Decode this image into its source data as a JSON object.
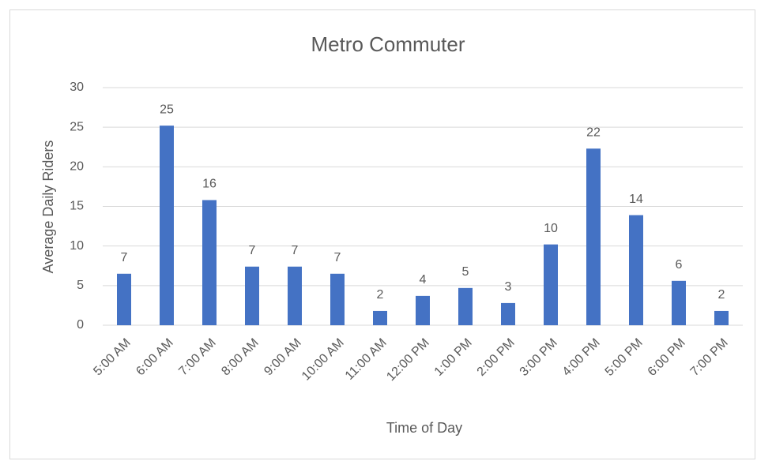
{
  "chart_data": {
    "type": "bar",
    "title": "Metro Commuter",
    "x_label": "Time of Day",
    "y_label": "Average Daily Riders",
    "categories": [
      "5:00 AM",
      "6:00 AM",
      "7:00 AM",
      "8:00 AM",
      "9:00 AM",
      "10:00 AM",
      "11:00 AM",
      "12:00 PM",
      "1:00 PM",
      "2:00 PM",
      "3:00 PM",
      "4:00 PM",
      "5:00 PM",
      "6:00 PM",
      "7:00 PM"
    ],
    "values": [
      6.5,
      25.2,
      15.8,
      7.4,
      7.4,
      6.5,
      1.8,
      3.7,
      4.7,
      2.8,
      10.2,
      22.3,
      13.9,
      5.6,
      1.8
    ],
    "value_labels": [
      "7",
      "25",
      "16",
      "7",
      "7",
      "7",
      "2",
      "4",
      "5",
      "3",
      "10",
      "22",
      "14",
      "6",
      "2"
    ],
    "color": "#4472c4",
    "ylim": [
      0,
      30
    ],
    "yticks": [
      0,
      5,
      10,
      15,
      20,
      25,
      30
    ],
    "grid": true
  }
}
